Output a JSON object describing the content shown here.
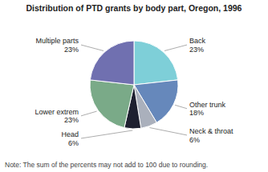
{
  "chart_data": {
    "type": "pie",
    "title": "Distribution of PTD grants by body part, Oregon, 1996",
    "annotations": [
      "Note: The sum of the percents may not add to 100 due to rounding."
    ],
    "categories": [
      "Back",
      "Other trunk",
      "Neck & throat",
      "Head",
      "Lower extrem",
      "Multiple parts"
    ],
    "values": [
      23,
      18,
      6,
      6,
      23,
      23
    ],
    "value_labels": [
      "23%",
      "18%",
      "6%",
      "6%",
      "23%",
      "23%"
    ],
    "colors": [
      "#7ecfd8",
      "#6688bb",
      "#aab0bc",
      "#1e2030",
      "#7aaa88",
      "#7070b0"
    ],
    "data_labels": true
  }
}
